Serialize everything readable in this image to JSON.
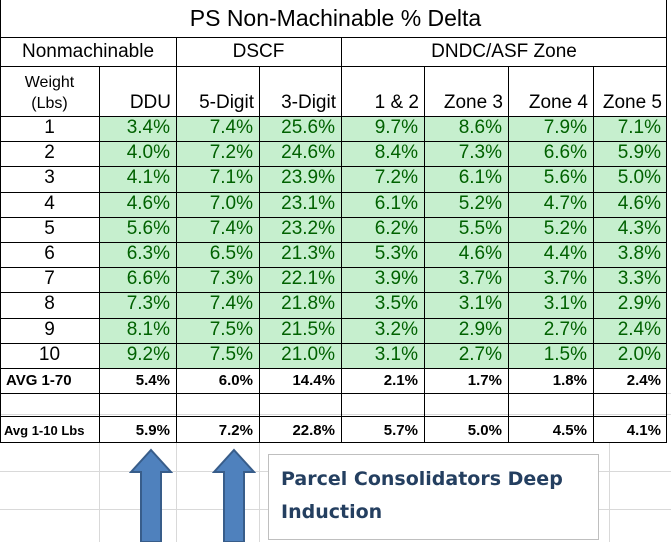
{
  "title": "PS Non-Machinable % Delta",
  "group_headers": {
    "nonmachinable": "Nonmachinable",
    "dscf": "DSCF",
    "dndc": "DNDC/ASF Zone"
  },
  "weight_header": [
    "Weight",
    "(Lbs)"
  ],
  "columns": [
    "DDU",
    "5-Digit",
    "3-Digit",
    "1 & 2",
    "Zone 3",
    "Zone 4",
    "Zone 5"
  ],
  "rows": [
    {
      "weight": "1",
      "values": [
        "3.4%",
        "7.4%",
        "25.6%",
        "9.7%",
        "8.6%",
        "7.9%",
        "7.1%"
      ]
    },
    {
      "weight": "2",
      "values": [
        "4.0%",
        "7.2%",
        "24.6%",
        "8.4%",
        "7.3%",
        "6.6%",
        "5.9%"
      ]
    },
    {
      "weight": "3",
      "values": [
        "4.1%",
        "7.1%",
        "23.9%",
        "7.2%",
        "6.1%",
        "5.6%",
        "5.0%"
      ]
    },
    {
      "weight": "4",
      "values": [
        "4.6%",
        "7.0%",
        "23.1%",
        "6.1%",
        "5.2%",
        "4.7%",
        "4.6%"
      ]
    },
    {
      "weight": "5",
      "values": [
        "5.6%",
        "7.4%",
        "23.2%",
        "6.2%",
        "5.5%",
        "5.2%",
        "4.3%"
      ]
    },
    {
      "weight": "6",
      "values": [
        "6.3%",
        "6.5%",
        "21.3%",
        "5.3%",
        "4.6%",
        "4.4%",
        "3.8%"
      ]
    },
    {
      "weight": "7",
      "values": [
        "6.6%",
        "7.3%",
        "22.1%",
        "3.9%",
        "3.7%",
        "3.7%",
        "3.3%"
      ]
    },
    {
      "weight": "8",
      "values": [
        "7.3%",
        "7.4%",
        "21.8%",
        "3.5%",
        "3.1%",
        "3.1%",
        "2.9%"
      ]
    },
    {
      "weight": "9",
      "values": [
        "8.1%",
        "7.5%",
        "21.5%",
        "3.2%",
        "2.9%",
        "2.7%",
        "2.4%"
      ]
    },
    {
      "weight": "10",
      "values": [
        "9.2%",
        "7.5%",
        "21.0%",
        "3.1%",
        "2.7%",
        "1.5%",
        "2.0%"
      ]
    }
  ],
  "avg_1_70": {
    "label": "AVG 1-70",
    "values": [
      "5.4%",
      "6.0%",
      "14.4%",
      "2.1%",
      "1.7%",
      "1.8%",
      "2.4%"
    ]
  },
  "avg_1_10": {
    "label": "Avg 1-10 Lbs",
    "values": [
      "5.9%",
      "7.2%",
      "22.8%",
      "5.7%",
      "5.0%",
      "4.5%",
      "4.1%"
    ]
  },
  "callout": {
    "line1": "Parcel Consolidators Deep",
    "line2": "Induction"
  },
  "colors": {
    "green_fill": "#c6efce",
    "green_text": "#006100",
    "arrow_fill": "#4f81bd",
    "arrow_stroke": "#385d8a",
    "callout_text": "#243f60"
  },
  "icons": [
    "up-arrow-icon",
    "up-arrow-icon"
  ]
}
